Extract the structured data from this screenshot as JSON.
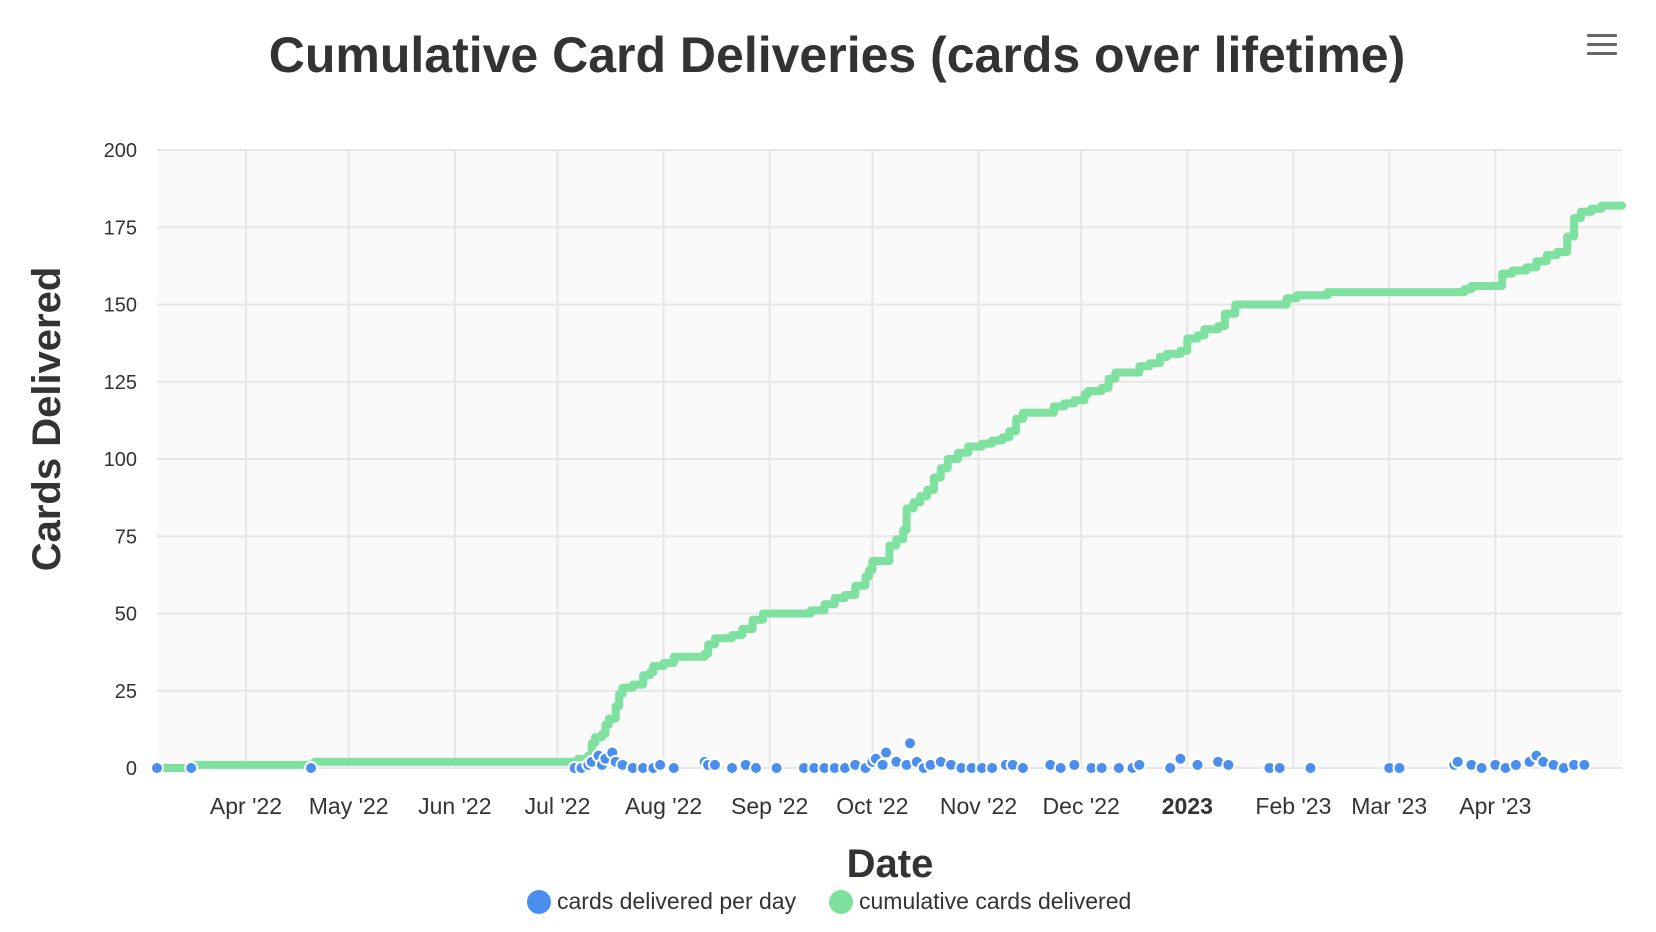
{
  "menu": {
    "icon": "hamburger-menu-icon"
  },
  "chart_data": {
    "type": "line",
    "title": "Cumulative Card Deliveries (cards over lifetime)",
    "xlabel": "Date",
    "ylabel": "Cards Delivered",
    "ylim": [
      0,
      200
    ],
    "y_ticks": [
      "0",
      "25",
      "50",
      "75",
      "100",
      "125",
      "150",
      "175",
      "200"
    ],
    "x_range": [
      "2022-03-06",
      "2023-05-08"
    ],
    "x_ticks": [
      {
        "date": "2022-04-01",
        "label": "Apr '22",
        "bold": false
      },
      {
        "date": "2022-05-01",
        "label": "May '22",
        "bold": false
      },
      {
        "date": "2022-06-01",
        "label": "Jun '22",
        "bold": false
      },
      {
        "date": "2022-07-01",
        "label": "Jul '22",
        "bold": false
      },
      {
        "date": "2022-08-01",
        "label": "Aug '22",
        "bold": false
      },
      {
        "date": "2022-09-01",
        "label": "Sep '22",
        "bold": false
      },
      {
        "date": "2022-10-01",
        "label": "Oct '22",
        "bold": false
      },
      {
        "date": "2022-11-01",
        "label": "Nov '22",
        "bold": false
      },
      {
        "date": "2022-12-01",
        "label": "Dec '22",
        "bold": false
      },
      {
        "date": "2023-01-01",
        "label": "2023",
        "bold": true
      },
      {
        "date": "2023-02-01",
        "label": "Feb '23",
        "bold": false
      },
      {
        "date": "2023-03-01",
        "label": "Mar '23",
        "bold": false
      },
      {
        "date": "2023-04-01",
        "label": "Apr '23",
        "bold": false
      }
    ],
    "grid": true,
    "legend_position": "bottom-center",
    "series": [
      {
        "name": "cards delivered per day",
        "type": "scatter",
        "color": "#4a8ff0",
        "points": [
          [
            "2022-03-06",
            0
          ],
          [
            "2022-03-16",
            0
          ],
          [
            "2022-04-20",
            0
          ],
          [
            "2022-07-06",
            0
          ],
          [
            "2022-07-08",
            0
          ],
          [
            "2022-07-10",
            1
          ],
          [
            "2022-07-11",
            2
          ],
          [
            "2022-07-13",
            4
          ],
          [
            "2022-07-14",
            1
          ],
          [
            "2022-07-15",
            3
          ],
          [
            "2022-07-17",
            5
          ],
          [
            "2022-07-18",
            2
          ],
          [
            "2022-07-20",
            1
          ],
          [
            "2022-07-23",
            0
          ],
          [
            "2022-07-26",
            0
          ],
          [
            "2022-07-29",
            0
          ],
          [
            "2022-07-31",
            1
          ],
          [
            "2022-08-04",
            0
          ],
          [
            "2022-08-13",
            2
          ],
          [
            "2022-08-14",
            1
          ],
          [
            "2022-08-16",
            1
          ],
          [
            "2022-08-21",
            0
          ],
          [
            "2022-08-25",
            1
          ],
          [
            "2022-08-28",
            0
          ],
          [
            "2022-09-03",
            0
          ],
          [
            "2022-09-11",
            0
          ],
          [
            "2022-09-14",
            0
          ],
          [
            "2022-09-17",
            0
          ],
          [
            "2022-09-20",
            0
          ],
          [
            "2022-09-23",
            0
          ],
          [
            "2022-09-26",
            1
          ],
          [
            "2022-09-29",
            0
          ],
          [
            "2022-10-01",
            2
          ],
          [
            "2022-10-02",
            3
          ],
          [
            "2022-10-04",
            1
          ],
          [
            "2022-10-05",
            5
          ],
          [
            "2022-10-08",
            2
          ],
          [
            "2022-10-11",
            1
          ],
          [
            "2022-10-12",
            8
          ],
          [
            "2022-10-14",
            2
          ],
          [
            "2022-10-16",
            0
          ],
          [
            "2022-10-18",
            1
          ],
          [
            "2022-10-21",
            2
          ],
          [
            "2022-10-24",
            1
          ],
          [
            "2022-10-27",
            0
          ],
          [
            "2022-10-30",
            0
          ],
          [
            "2022-11-02",
            0
          ],
          [
            "2022-11-05",
            0
          ],
          [
            "2022-11-09",
            1
          ],
          [
            "2022-11-11",
            1
          ],
          [
            "2022-11-14",
            0
          ],
          [
            "2022-11-22",
            1
          ],
          [
            "2022-11-25",
            0
          ],
          [
            "2022-11-29",
            1
          ],
          [
            "2022-12-04",
            0
          ],
          [
            "2022-12-07",
            0
          ],
          [
            "2022-12-12",
            0
          ],
          [
            "2022-12-16",
            0
          ],
          [
            "2022-12-18",
            1
          ],
          [
            "2022-12-27",
            0
          ],
          [
            "2022-12-30",
            3
          ],
          [
            "2023-01-04",
            1
          ],
          [
            "2023-01-10",
            2
          ],
          [
            "2023-01-13",
            1
          ],
          [
            "2023-01-25",
            0
          ],
          [
            "2023-01-28",
            0
          ],
          [
            "2023-02-06",
            0
          ],
          [
            "2023-03-01",
            0
          ],
          [
            "2023-03-04",
            0
          ],
          [
            "2023-03-20",
            1
          ],
          [
            "2023-03-21",
            2
          ],
          [
            "2023-03-25",
            1
          ],
          [
            "2023-03-28",
            0
          ],
          [
            "2023-04-01",
            1
          ],
          [
            "2023-04-04",
            0
          ],
          [
            "2023-04-07",
            1
          ],
          [
            "2023-04-11",
            2
          ],
          [
            "2023-04-13",
            4
          ],
          [
            "2023-04-15",
            2
          ],
          [
            "2023-04-18",
            1
          ],
          [
            "2023-04-21",
            0
          ],
          [
            "2023-04-24",
            1
          ],
          [
            "2023-04-27",
            1
          ]
        ]
      },
      {
        "name": "cumulative cards delivered",
        "type": "line",
        "color": "#7ee1a0",
        "points": [
          [
            "2022-03-06",
            0
          ],
          [
            "2022-03-15",
            0
          ],
          [
            "2022-03-16",
            1
          ],
          [
            "2022-04-20",
            1
          ],
          [
            "2022-04-21",
            2
          ],
          [
            "2022-07-06",
            2
          ],
          [
            "2022-07-07",
            3
          ],
          [
            "2022-07-10",
            4
          ],
          [
            "2022-07-11",
            8
          ],
          [
            "2022-07-12",
            10
          ],
          [
            "2022-07-14",
            11
          ],
          [
            "2022-07-15",
            14
          ],
          [
            "2022-07-16",
            16
          ],
          [
            "2022-07-18",
            20
          ],
          [
            "2022-07-19",
            24
          ],
          [
            "2022-07-20",
            26
          ],
          [
            "2022-07-23",
            27
          ],
          [
            "2022-07-26",
            30
          ],
          [
            "2022-07-28",
            31
          ],
          [
            "2022-07-29",
            33
          ],
          [
            "2022-08-01",
            34
          ],
          [
            "2022-08-04",
            36
          ],
          [
            "2022-08-13",
            37
          ],
          [
            "2022-08-14",
            40
          ],
          [
            "2022-08-16",
            42
          ],
          [
            "2022-08-21",
            43
          ],
          [
            "2022-08-24",
            45
          ],
          [
            "2022-08-27",
            48
          ],
          [
            "2022-08-30",
            50
          ],
          [
            "2022-09-11",
            50
          ],
          [
            "2022-09-13",
            51
          ],
          [
            "2022-09-17",
            53
          ],
          [
            "2022-09-20",
            55
          ],
          [
            "2022-09-23",
            56
          ],
          [
            "2022-09-26",
            59
          ],
          [
            "2022-09-29",
            62
          ],
          [
            "2022-09-30",
            64
          ],
          [
            "2022-10-01",
            67
          ],
          [
            "2022-10-05",
            67
          ],
          [
            "2022-10-06",
            72
          ],
          [
            "2022-10-08",
            74
          ],
          [
            "2022-10-10",
            77
          ],
          [
            "2022-10-11",
            84
          ],
          [
            "2022-10-13",
            86
          ],
          [
            "2022-10-15",
            88
          ],
          [
            "2022-10-17",
            90
          ],
          [
            "2022-10-19",
            94
          ],
          [
            "2022-10-21",
            97
          ],
          [
            "2022-10-23",
            100
          ],
          [
            "2022-10-26",
            102
          ],
          [
            "2022-10-29",
            104
          ],
          [
            "2022-11-02",
            105
          ],
          [
            "2022-11-05",
            106
          ],
          [
            "2022-11-08",
            107
          ],
          [
            "2022-11-10",
            109
          ],
          [
            "2022-11-12",
            113
          ],
          [
            "2022-11-14",
            115
          ],
          [
            "2022-11-22",
            115
          ],
          [
            "2022-11-23",
            117
          ],
          [
            "2022-11-26",
            118
          ],
          [
            "2022-11-29",
            119
          ],
          [
            "2022-12-02",
            121
          ],
          [
            "2022-12-03",
            122
          ],
          [
            "2022-12-07",
            123
          ],
          [
            "2022-12-09",
            126
          ],
          [
            "2022-12-11",
            128
          ],
          [
            "2022-12-16",
            128
          ],
          [
            "2022-12-18",
            130
          ],
          [
            "2022-12-21",
            131
          ],
          [
            "2022-12-24",
            133
          ],
          [
            "2022-12-26",
            134
          ],
          [
            "2022-12-30",
            135
          ],
          [
            "2023-01-01",
            139
          ],
          [
            "2023-01-04",
            140
          ],
          [
            "2023-01-06",
            142
          ],
          [
            "2023-01-10",
            143
          ],
          [
            "2023-01-12",
            147
          ],
          [
            "2023-01-15",
            150
          ],
          [
            "2023-01-27",
            150
          ],
          [
            "2023-01-30",
            152
          ],
          [
            "2023-02-02",
            153
          ],
          [
            "2023-02-08",
            153
          ],
          [
            "2023-02-11",
            154
          ],
          [
            "2023-03-20",
            154
          ],
          [
            "2023-03-23",
            155
          ],
          [
            "2023-03-25",
            156
          ],
          [
            "2023-04-01",
            156
          ],
          [
            "2023-04-03",
            160
          ],
          [
            "2023-04-06",
            161
          ],
          [
            "2023-04-10",
            162
          ],
          [
            "2023-04-13",
            164
          ],
          [
            "2023-04-16",
            166
          ],
          [
            "2023-04-19",
            167
          ],
          [
            "2023-04-22",
            172
          ],
          [
            "2023-04-24",
            178
          ],
          [
            "2023-04-26",
            180
          ],
          [
            "2023-04-29",
            181
          ],
          [
            "2023-05-02",
            182
          ],
          [
            "2023-05-08",
            182
          ]
        ]
      }
    ]
  }
}
